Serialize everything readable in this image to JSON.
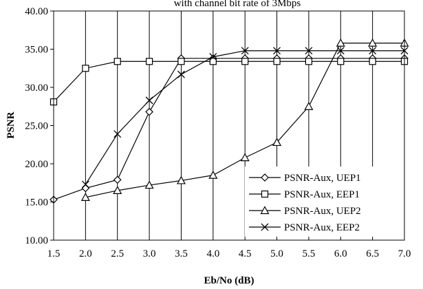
{
  "chart_data": {
    "type": "line",
    "title": "with channel bit rate of 3Mbps",
    "xlabel": "Eb/No (dB)",
    "ylabel": "PSNR",
    "xlim": [
      1.5,
      7.0
    ],
    "ylim": [
      10,
      40
    ],
    "x_ticks": [
      "1.5",
      "2.0",
      "2.5",
      "3.0",
      "3.5",
      "4.0",
      "4.5",
      "5.0",
      "5.5",
      "6.0",
      "6.5",
      "7.0"
    ],
    "y_ticks": [
      "10.00",
      "15.00",
      "20.00",
      "25.00",
      "30.00",
      "35.00",
      "40.00"
    ],
    "grid": "vertical",
    "legend_position": "bottom-right",
    "series": [
      {
        "name": "PSNR-Aux, UEP1",
        "marker": "diamond",
        "x": [
          1.5,
          2.0,
          2.5,
          3.0,
          3.5,
          4.0,
          4.5,
          5.0,
          5.5,
          6.0,
          6.5,
          7.0
        ],
        "y": [
          15.3,
          16.8,
          17.9,
          26.8,
          33.8,
          33.8,
          33.8,
          33.8,
          33.8,
          33.8,
          33.8,
          33.8
        ]
      },
      {
        "name": "PSNR-Aux, EEP1",
        "marker": "square",
        "x": [
          1.5,
          2.0,
          2.5,
          3.0,
          3.5,
          4.0,
          4.5,
          5.0,
          5.5,
          6.0,
          6.5,
          7.0
        ],
        "y": [
          28.1,
          32.5,
          33.4,
          33.4,
          33.4,
          33.4,
          33.4,
          33.4,
          33.4,
          33.4,
          33.4,
          33.4
        ]
      },
      {
        "name": "PSNR-Aux, UEP2",
        "marker": "triangle",
        "x": [
          2.0,
          2.5,
          3.0,
          3.5,
          4.0,
          4.5,
          5.0,
          5.5,
          6.0,
          6.5,
          7.0
        ],
        "y": [
          15.6,
          16.5,
          17.2,
          17.8,
          18.5,
          20.8,
          22.8,
          27.5,
          35.8,
          35.8,
          35.8
        ]
      },
      {
        "name": "PSNR-Aux, EEP2",
        "marker": "cross",
        "x": [
          2.0,
          2.5,
          3.0,
          3.5,
          4.0,
          4.5,
          5.0,
          5.5,
          6.0,
          6.5,
          7.0
        ],
        "y": [
          17.3,
          23.9,
          28.3,
          31.7,
          34.0,
          34.8,
          34.8,
          34.8,
          34.8,
          34.8,
          34.8
        ]
      }
    ]
  }
}
